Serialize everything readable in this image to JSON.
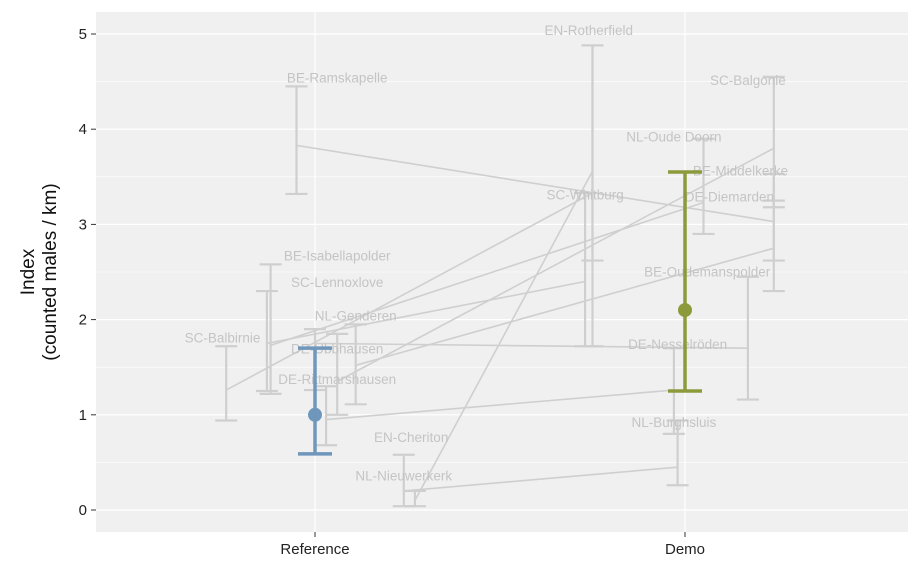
{
  "chart_data": {
    "type": "errorbar",
    "ylabel": "Index",
    "ylabel_unit": "(counted males / km)",
    "ylim": [
      0,
      5
    ],
    "yticks": [
      "0",
      "1",
      "2",
      "3",
      "4",
      "5"
    ],
    "ytick_values": [
      0,
      1,
      2,
      3,
      4,
      5
    ],
    "categories": [
      "Reference",
      "Demo"
    ],
    "grid": true,
    "colors": {
      "panel": "#f0f0f0",
      "grid": "#ffffff",
      "site": "#cfcfcf",
      "site_text": "#c4c4c4",
      "reference": "#6f97bb",
      "demo": "#8c9a3c"
    },
    "summary": [
      {
        "category": "Reference",
        "mean": 1.0,
        "lower": 0.59,
        "upper": 1.7
      },
      {
        "category": "Demo",
        "mean": 2.1,
        "lower": 1.25,
        "upper": 3.55
      }
    ],
    "sites": [
      {
        "name": "BE-Ramskapelle",
        "ref": {
          "value": 3.83,
          "lower": 3.32,
          "upper": 4.45,
          "offset": -0.05
        },
        "demo": {
          "value": 3.03,
          "lower": 2.62,
          "upper": 3.53,
          "offset": 0.24
        }
      },
      {
        "name": "BE-Isabellapolder",
        "ref": {
          "value": 1.73,
          "lower": 1.22,
          "upper": 2.58,
          "offset": -0.12
        },
        "demo": {
          "value": 3.23,
          "lower": 2.9,
          "upper": 3.9,
          "offset": 0.05
        }
      },
      {
        "name": "SC-Lennoxlove",
        "ref": {
          "value": 1.75,
          "lower": 1.25,
          "upper": 2.3,
          "offset": -0.13
        },
        "demo": {
          "value": 2.4,
          "lower": 1.72,
          "upper": 3.33,
          "offset": -0.27
        }
      },
      {
        "name": "SC-Balbirnie",
        "ref": {
          "value": 1.26,
          "lower": 0.94,
          "upper": 1.72,
          "offset": -0.24
        },
        "demo": {
          "value": 3.33,
          "lower": 2.62,
          "upper": 4.88,
          "offset": -0.25
        }
      },
      {
        "name": "NL-Genderen",
        "ref": {
          "value": 1.52,
          "lower": 1.11,
          "upper": 1.95,
          "offset": 0.11
        },
        "demo": {
          "value": 2.75,
          "lower": 2.3,
          "upper": 3.25,
          "offset": 0.24
        }
      },
      {
        "name": "DE-Ubbhausen",
        "ref": {
          "value": 1.35,
          "lower": 1.0,
          "upper": 1.85,
          "offset": 0.06
        },
        "demo": {
          "value": 3.8,
          "lower": 3.18,
          "upper": 4.55,
          "offset": 0.24
        }
      },
      {
        "name": "DE-Rittmarshausen",
        "ref": {
          "value": 1.75,
          "lower": 1.26,
          "upper": 1.9,
          "offset": 0.0
        },
        "demo": {
          "value": 1.7,
          "lower": 1.16,
          "upper": 2.45,
          "offset": 0.17
        }
      },
      {
        "name": "EN-Cheriton",
        "ref": {
          "value": 0.1,
          "lower": 0.04,
          "upper": 0.2,
          "offset": 0.27
        },
        "demo": {
          "value": 3.56,
          "lower": 1.72,
          "upper": 4.88,
          "offset": -0.25
        }
      },
      {
        "name": "NL-Nieuwerkerk",
        "ref": {
          "value": 0.2,
          "lower": 0.04,
          "upper": 0.58,
          "offset": 0.24
        },
        "demo": {
          "value": 0.45,
          "lower": 0.26,
          "upper": 0.94,
          "offset": -0.02
        }
      },
      {
        "name": "EN-Rotherfield",
        "ref": {
          "value": 0.95,
          "lower": 0.68,
          "upper": 1.3,
          "offset": 0.03
        },
        "demo": {
          "value": 1.26,
          "lower": 0.8,
          "upper": 1.7,
          "offset": -0.03
        }
      }
    ],
    "annotations": [
      {
        "text": "BE-Ramskapelle",
        "x": 0.06,
        "y": 4.45
      },
      {
        "text": "BE-Isabellapolder",
        "x": 0.06,
        "y": 2.58
      },
      {
        "text": "SC-Lennoxlove",
        "x": 0.06,
        "y": 2.3
      },
      {
        "text": "SC-Balbirnie",
        "x": -0.25,
        "y": 1.72
      },
      {
        "text": "NL-Genderen",
        "x": 0.11,
        "y": 1.95
      },
      {
        "text": "DE-Ubbhausen",
        "x": 0.06,
        "y": 1.6
      },
      {
        "text": "DE-Rittmarshausen",
        "x": 0.06,
        "y": 1.28
      },
      {
        "text": "EN-Cheriton",
        "x": 0.26,
        "y": 0.67
      },
      {
        "text": "NL-Nieuwerkerk",
        "x": 0.24,
        "y": 0.27
      },
      {
        "text": "EN-Rotherfield",
        "x": 0.74,
        "y": 4.95
      },
      {
        "text": "SC-Balgonie",
        "x": 1.17,
        "y": 4.42
      },
      {
        "text": "NL-Oude Doorn",
        "x": 0.97,
        "y": 3.83
      },
      {
        "text": "BE-Middelkerke",
        "x": 1.15,
        "y": 3.47
      },
      {
        "text": "SC-Whitburg",
        "x": 0.73,
        "y": 3.22
      },
      {
        "text": "DE-Diemarden",
        "x": 1.12,
        "y": 3.2
      },
      {
        "text": "BE-Oudemanspolder",
        "x": 1.06,
        "y": 2.41
      },
      {
        "text": "DE-Nesselröden",
        "x": 0.98,
        "y": 1.65
      },
      {
        "text": "NL-Burghsluis",
        "x": 0.97,
        "y": 0.83
      }
    ]
  }
}
